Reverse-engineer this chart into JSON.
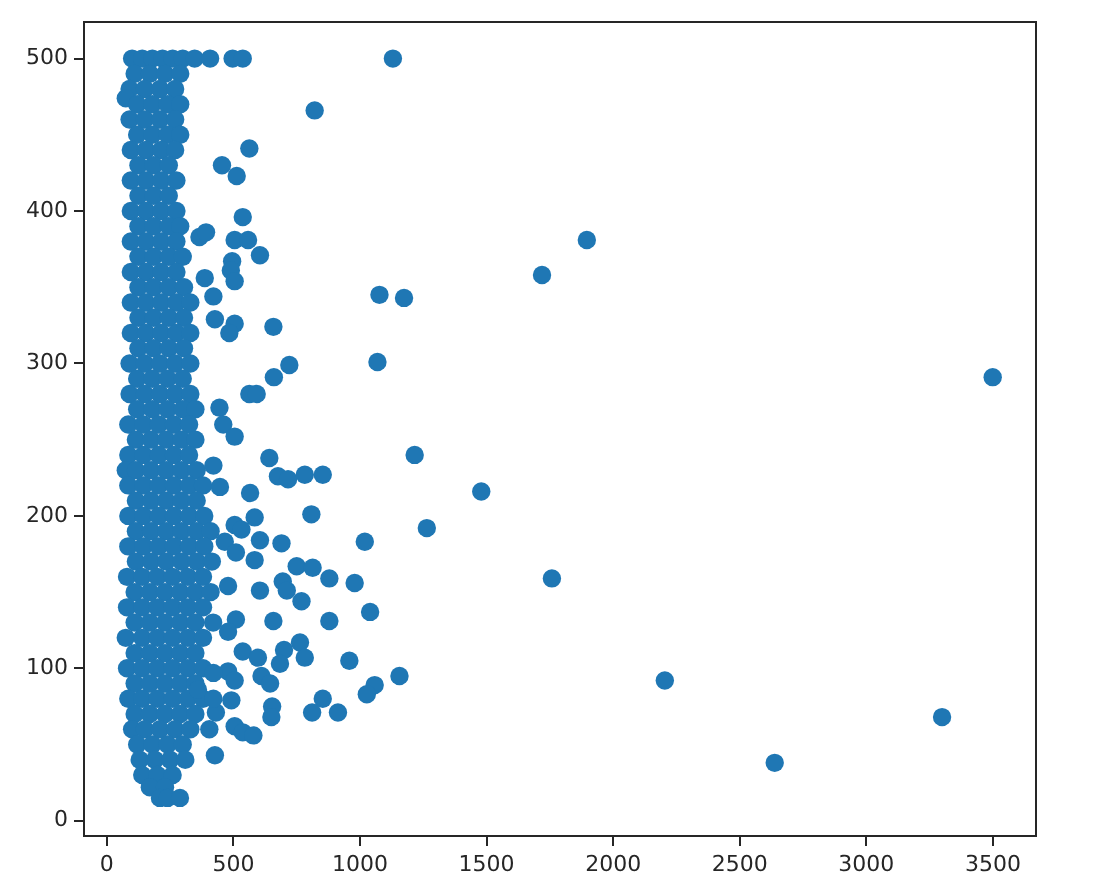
{
  "chart_data": {
    "type": "scatter",
    "x": [
      100,
      140,
      180,
      220,
      260,
      300,
      347,
      110,
      170,
      230,
      290,
      90,
      150,
      210,
      270,
      75,
      120,
      180,
      240,
      290,
      90,
      150,
      210,
      270,
      120,
      180,
      240,
      290,
      95,
      155,
      215,
      270,
      125,
      185,
      245,
      95,
      155,
      215,
      275,
      125,
      185,
      245,
      95,
      155,
      215,
      275,
      125,
      185,
      245,
      290,
      95,
      155,
      215,
      275,
      125,
      185,
      245,
      300,
      95,
      155,
      215,
      275,
      125,
      185,
      245,
      305,
      95,
      155,
      215,
      275,
      330,
      125,
      185,
      245,
      305,
      95,
      155,
      215,
      275,
      330,
      125,
      185,
      245,
      305,
      90,
      150,
      210,
      270,
      330,
      120,
      180,
      240,
      300,
      90,
      150,
      210,
      270,
      330,
      120,
      180,
      240,
      300,
      350,
      85,
      145,
      205,
      265,
      325,
      115,
      175,
      235,
      295,
      350,
      85,
      145,
      205,
      265,
      325,
      75,
      115,
      175,
      235,
      295,
      355,
      85,
      145,
      205,
      265,
      325,
      380,
      115,
      175,
      235,
      295,
      355,
      85,
      145,
      205,
      265,
      325,
      385,
      115,
      175,
      235,
      295,
      355,
      410,
      85,
      145,
      205,
      265,
      325,
      385,
      115,
      175,
      235,
      295,
      355,
      415,
      80,
      140,
      200,
      260,
      320,
      380,
      110,
      170,
      230,
      290,
      350,
      410,
      80,
      140,
      200,
      260,
      320,
      380,
      110,
      170,
      230,
      290,
      350,
      420,
      75,
      140,
      200,
      260,
      320,
      380,
      110,
      170,
      230,
      290,
      350,
      80,
      140,
      200,
      260,
      320,
      380,
      110,
      170,
      230,
      290,
      350,
      85,
      140,
      200,
      260,
      320,
      380,
      110,
      170,
      230,
      290,
      350,
      100,
      150,
      210,
      270,
      330,
      120,
      180,
      240,
      300,
      130,
      190,
      250,
      310,
      140,
      200,
      260,
      170,
      230,
      210,
      240,
      289,
      408,
      497,
      537,
      1130,
      821,
      563,
      455,
      513,
      537,
      366,
      392,
      505,
      558,
      605,
      495,
      490,
      505,
      387,
      421,
      1077,
      1174,
      1719,
      427,
      505,
      484,
      658,
      721,
      1069,
      660,
      563,
      592,
      445,
      460,
      505,
      1896,
      3499,
      1758,
      2204,
      2638,
      3299,
      1216,
      1479,
      1264,
      642,
      676,
      716,
      782,
      853,
      566,
      421,
      447,
      584,
      808,
      505,
      532,
      1019,
      605,
      690,
      466,
      510,
      584,
      750,
      813,
      879,
      979,
      695,
      711,
      605,
      769,
      479,
      1040,
      658,
      879,
      510,
      479,
      537,
      597,
      763,
      700,
      782,
      684,
      958,
      1156,
      611,
      645,
      1058,
      1027,
      853,
      653,
      650,
      811,
      913,
      479,
      505,
      492,
      431,
      505,
      537,
      579,
      405,
      427,
      360,
      421,
      421
    ],
    "values": [
      500,
      500,
      500,
      500,
      500,
      500,
      500,
      490,
      490,
      490,
      490,
      480,
      480,
      480,
      480,
      474,
      470,
      470,
      470,
      470,
      460,
      460,
      460,
      460,
      450,
      450,
      450,
      450,
      440,
      440,
      440,
      440,
      430,
      430,
      430,
      420,
      420,
      420,
      420,
      410,
      410,
      410,
      400,
      400,
      400,
      400,
      390,
      390,
      390,
      390,
      380,
      380,
      380,
      380,
      370,
      370,
      370,
      370,
      360,
      360,
      360,
      360,
      350,
      350,
      350,
      350,
      340,
      340,
      340,
      340,
      340,
      330,
      330,
      330,
      330,
      320,
      320,
      320,
      320,
      320,
      310,
      310,
      310,
      310,
      300,
      300,
      300,
      300,
      300,
      290,
      290,
      290,
      290,
      280,
      280,
      280,
      280,
      280,
      270,
      270,
      270,
      270,
      270,
      260,
      260,
      260,
      260,
      260,
      250,
      250,
      250,
      250,
      250,
      240,
      240,
      240,
      240,
      240,
      230,
      230,
      230,
      230,
      230,
      230,
      220,
      220,
      220,
      220,
      220,
      220,
      210,
      210,
      210,
      210,
      210,
      200,
      200,
      200,
      200,
      200,
      200,
      190,
      190,
      190,
      190,
      190,
      190,
      180,
      180,
      180,
      180,
      180,
      180,
      170,
      170,
      170,
      170,
      170,
      170,
      160,
      160,
      160,
      160,
      160,
      160,
      150,
      150,
      150,
      150,
      150,
      150,
      140,
      140,
      140,
      140,
      140,
      140,
      130,
      130,
      130,
      130,
      130,
      130,
      120,
      120,
      120,
      120,
      120,
      120,
      110,
      110,
      110,
      110,
      110,
      100,
      100,
      100,
      100,
      100,
      100,
      90,
      90,
      90,
      90,
      90,
      80,
      80,
      80,
      80,
      80,
      80,
      70,
      70,
      70,
      70,
      70,
      60,
      60,
      60,
      60,
      60,
      50,
      50,
      50,
      50,
      40,
      40,
      40,
      40,
      30,
      30,
      30,
      22,
      22,
      15,
      15,
      15,
      500,
      500,
      500,
      500,
      466,
      441,
      430,
      423,
      396,
      383,
      386,
      381,
      381,
      371,
      367,
      361,
      354,
      356,
      344,
      345,
      343,
      358,
      329,
      326,
      320,
      324,
      299,
      301,
      291,
      280,
      280,
      271,
      260,
      252,
      381,
      291,
      159,
      92,
      38,
      68,
      240,
      216,
      192,
      238,
      226,
      224,
      227,
      227,
      215,
      233,
      219,
      199,
      201,
      194,
      191,
      183,
      184,
      182,
      183,
      176,
      171,
      167,
      166,
      159,
      156,
      157,
      151,
      151,
      144,
      154,
      137,
      131,
      131,
      132,
      124,
      111,
      107,
      117,
      112,
      107,
      103,
      105,
      95,
      95,
      90,
      89,
      83,
      80,
      75,
      68,
      71,
      71,
      98,
      92,
      79,
      71,
      62,
      58,
      56,
      60,
      43,
      86,
      97,
      80
    ],
    "color": "#1f77b4",
    "marker": "circle",
    "xlim": [
      -90,
      3670
    ],
    "xticks": [
      0,
      500,
      1000,
      1500,
      2000,
      2500,
      3000,
      3500
    ],
    "ylim": [
      -10,
      524
    ],
    "yticks": [
      0,
      100,
      200,
      300,
      400,
      500
    ]
  }
}
